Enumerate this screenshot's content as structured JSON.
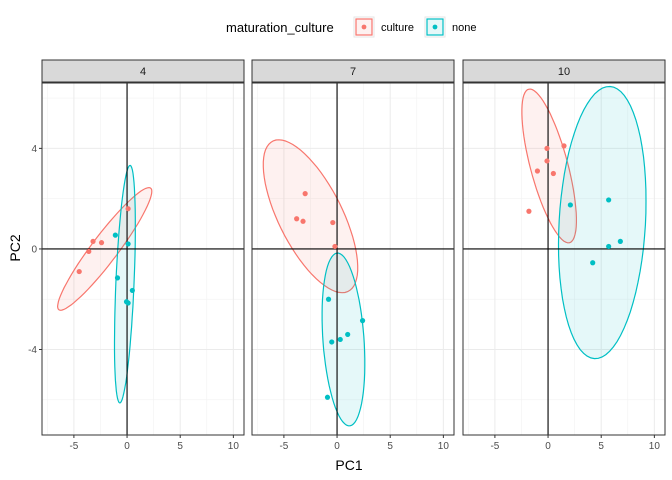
{
  "chart_data": {
    "type": "scatter",
    "xlabel": "PC1",
    "ylabel": "PC2",
    "xlim": [
      -8,
      11
    ],
    "ylim": [
      -7.4,
      6.6
    ],
    "x_ticks": [
      -5,
      0,
      5,
      10
    ],
    "x_tick_labels": [
      "-5",
      "0",
      "5",
      "10"
    ],
    "y_ticks": [
      -4,
      0,
      4
    ],
    "y_tick_labels": [
      "-4",
      "0",
      "4"
    ],
    "grid": true,
    "reference_lines": {
      "x": 0,
      "y": 0
    },
    "ellipses": true,
    "legend": {
      "title": "maturation_culture",
      "position": "top",
      "entries": [
        {
          "label": "culture",
          "color": "#F8766D"
        },
        {
          "label": "none",
          "color": "#00BFC4"
        }
      ]
    },
    "facets": [
      {
        "label": "4",
        "series": [
          {
            "name": "culture",
            "color": "#F8766D",
            "points": [
              [
                -4.5,
                -0.9
              ],
              [
                -3.6,
                -0.1
              ],
              [
                -3.2,
                0.3
              ],
              [
                -2.4,
                0.25
              ],
              [
                0.1,
                1.6
              ]
            ],
            "ellipse": {
              "cx": -2.1,
              "cy": 0.0,
              "rx": 5.0,
              "ry": 0.75,
              "angle": 28
            }
          },
          {
            "name": "none",
            "color": "#00BFC4",
            "points": [
              [
                -1.1,
                0.55
              ],
              [
                0.1,
                0.2
              ],
              [
                -0.9,
                -1.15
              ],
              [
                0.5,
                -1.65
              ],
              [
                -0.05,
                -2.1
              ],
              [
                0.1,
                -2.15
              ]
            ],
            "ellipse": {
              "cx": -0.2,
              "cy": -1.4,
              "rx": 0.85,
              "ry": 4.75,
              "angle": -6
            }
          }
        ]
      },
      {
        "label": "7",
        "series": [
          {
            "name": "culture",
            "color": "#F8766D",
            "points": [
              [
                -3.0,
                2.2
              ],
              [
                -3.8,
                1.2
              ],
              [
                -3.2,
                1.1
              ],
              [
                -0.4,
                1.05
              ],
              [
                -0.2,
                0.1
              ]
            ],
            "ellipse": {
              "cx": -2.5,
              "cy": 1.3,
              "rx": 5.0,
              "ry": 2.0,
              "angle": -30
            }
          },
          {
            "name": "none",
            "color": "#00BFC4",
            "points": [
              [
                -0.8,
                -2.0
              ],
              [
                2.4,
                -2.85
              ],
              [
                1.0,
                -3.4
              ],
              [
                0.3,
                -3.6
              ],
              [
                -0.5,
                -3.7
              ],
              [
                -0.9,
                -5.9
              ]
            ],
            "ellipse": {
              "cx": 0.6,
              "cy": -3.6,
              "rx": 1.9,
              "ry": 3.5,
              "angle": 13
            }
          }
        ]
      },
      {
        "label": "10",
        "series": [
          {
            "name": "culture",
            "color": "#F8766D",
            "points": [
              [
                1.5,
                4.1
              ],
              [
                -0.1,
                4.0
              ],
              [
                -0.1,
                3.5
              ],
              [
                -1.0,
                3.1
              ],
              [
                0.5,
                3.0
              ],
              [
                -1.8,
                1.5
              ]
            ],
            "ellipse": {
              "cx": 0.1,
              "cy": 3.3,
              "rx": 3.7,
              "ry": 1.5,
              "angle": -52
            }
          },
          {
            "name": "none",
            "color": "#00BFC4",
            "points": [
              [
                2.1,
                1.75
              ],
              [
                5.7,
                1.95
              ],
              [
                6.8,
                0.3
              ],
              [
                5.7,
                0.1
              ],
              [
                4.2,
                -0.55
              ]
            ],
            "ellipse": {
              "cx": 5.1,
              "cy": 1.05,
              "rx": 5.5,
              "ry": 4.0,
              "angle": -105
            }
          }
        ]
      }
    ]
  }
}
